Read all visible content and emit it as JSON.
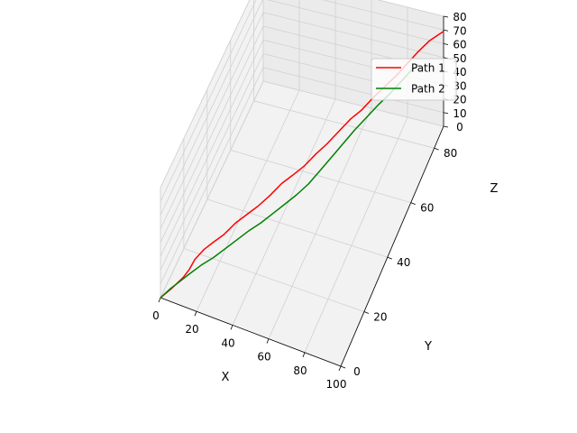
{
  "chart_data": {
    "type": "line",
    "projection": "3d",
    "xlabel": "X",
    "ylabel": "Y",
    "zlabel": "Z",
    "xlim": [
      0,
      100
    ],
    "ylim": [
      0,
      88
    ],
    "zlim": [
      0,
      80
    ],
    "xticks": [
      "0",
      "20",
      "40",
      "60",
      "80",
      "100"
    ],
    "yticks": [
      "0",
      "20",
      "40",
      "60",
      "80"
    ],
    "zticks": [
      "0",
      "10",
      "20",
      "30",
      "40",
      "50",
      "60",
      "70",
      "80"
    ],
    "grid": true,
    "legend_position": "top-right",
    "series": [
      {
        "name": "Path 1",
        "color": "#ff0000",
        "x": [
          0,
          4,
          8,
          10,
          12,
          15,
          18,
          22,
          26,
          30,
          34,
          38,
          42,
          46,
          50,
          54,
          58,
          62,
          66,
          70,
          74,
          78,
          82,
          86,
          90,
          94,
          98,
          100
        ],
        "y": [
          0,
          3,
          7,
          9,
          11,
          14,
          17,
          20,
          24,
          28,
          31,
          35,
          39,
          42,
          46,
          50,
          53,
          57,
          61,
          64,
          68,
          72,
          75,
          79,
          82,
          85,
          87,
          88
        ],
        "z": [
          0,
          3,
          6,
          9,
          14,
          17,
          18,
          20,
          23,
          24,
          26,
          28,
          31,
          33,
          34,
          37,
          40,
          43,
          46,
          48,
          51,
          53,
          56,
          59,
          63,
          66,
          68,
          69
        ]
      },
      {
        "name": "Path 2",
        "color": "#008000",
        "x": [
          0,
          3,
          6,
          9,
          13,
          17,
          21,
          25,
          29,
          33,
          37,
          41,
          45,
          49,
          53,
          57,
          61,
          65,
          69,
          73,
          77,
          81,
          85,
          88
        ],
        "y": [
          0,
          4,
          7,
          11,
          15,
          19,
          23,
          27,
          31,
          35,
          39,
          43,
          47,
          51,
          55,
          59,
          62,
          66,
          70,
          74,
          77,
          80,
          83,
          85
        ],
        "z": [
          0,
          1,
          2,
          2,
          3,
          3,
          4,
          5,
          6,
          6,
          7,
          8,
          9,
          11,
          15,
          19,
          24,
          28,
          31,
          34,
          37,
          41,
          45,
          47
        ]
      }
    ]
  }
}
